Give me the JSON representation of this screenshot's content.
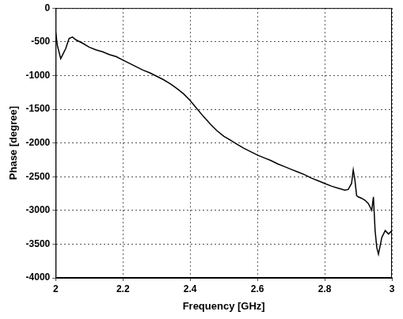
{
  "chart_data": {
    "type": "line",
    "x_label": "Frequency [GHz]",
    "y_label": "Phase [degree]",
    "x": [
      2.0,
      2.005,
      2.01,
      2.015,
      2.02,
      2.03,
      2.04,
      2.05,
      2.06,
      2.08,
      2.1,
      2.12,
      2.14,
      2.16,
      2.18,
      2.2,
      2.22,
      2.24,
      2.26,
      2.28,
      2.3,
      2.32,
      2.34,
      2.36,
      2.38,
      2.4,
      2.42,
      2.44,
      2.46,
      2.48,
      2.5,
      2.52,
      2.54,
      2.56,
      2.58,
      2.6,
      2.62,
      2.64,
      2.66,
      2.68,
      2.7,
      2.72,
      2.74,
      2.76,
      2.78,
      2.8,
      2.82,
      2.84,
      2.86,
      2.87,
      2.88,
      2.885,
      2.89,
      2.895,
      2.9,
      2.91,
      2.92,
      2.93,
      2.94,
      2.945,
      2.95,
      2.955,
      2.96,
      2.97,
      2.98,
      2.99,
      3.0
    ],
    "values": [
      -350,
      -550,
      -650,
      -750,
      -700,
      -600,
      -450,
      -430,
      -470,
      -520,
      -580,
      -620,
      -650,
      -690,
      -720,
      -770,
      -820,
      -870,
      -920,
      -960,
      -1010,
      -1060,
      -1120,
      -1190,
      -1270,
      -1370,
      -1490,
      -1610,
      -1720,
      -1820,
      -1900,
      -1960,
      -2020,
      -2080,
      -2130,
      -2180,
      -2220,
      -2260,
      -2310,
      -2350,
      -2390,
      -2430,
      -2470,
      -2520,
      -2560,
      -2600,
      -2640,
      -2670,
      -2700,
      -2690,
      -2600,
      -2400,
      -2550,
      -2780,
      -2800,
      -2820,
      -2850,
      -2900,
      -3000,
      -2800,
      -3300,
      -3550,
      -3650,
      -3400,
      -3300,
      -3350,
      -3300
    ],
    "color": "#000000",
    "xlim": [
      2,
      3
    ],
    "xticks": [
      2,
      2.2,
      2.4,
      2.6,
      2.8,
      3
    ],
    "ylim": [
      -4000,
      0
    ],
    "yticks": [
      -4000,
      -3500,
      -3000,
      -2500,
      -2000,
      -1500,
      -1000,
      -500,
      0
    ],
    "grid": true
  }
}
